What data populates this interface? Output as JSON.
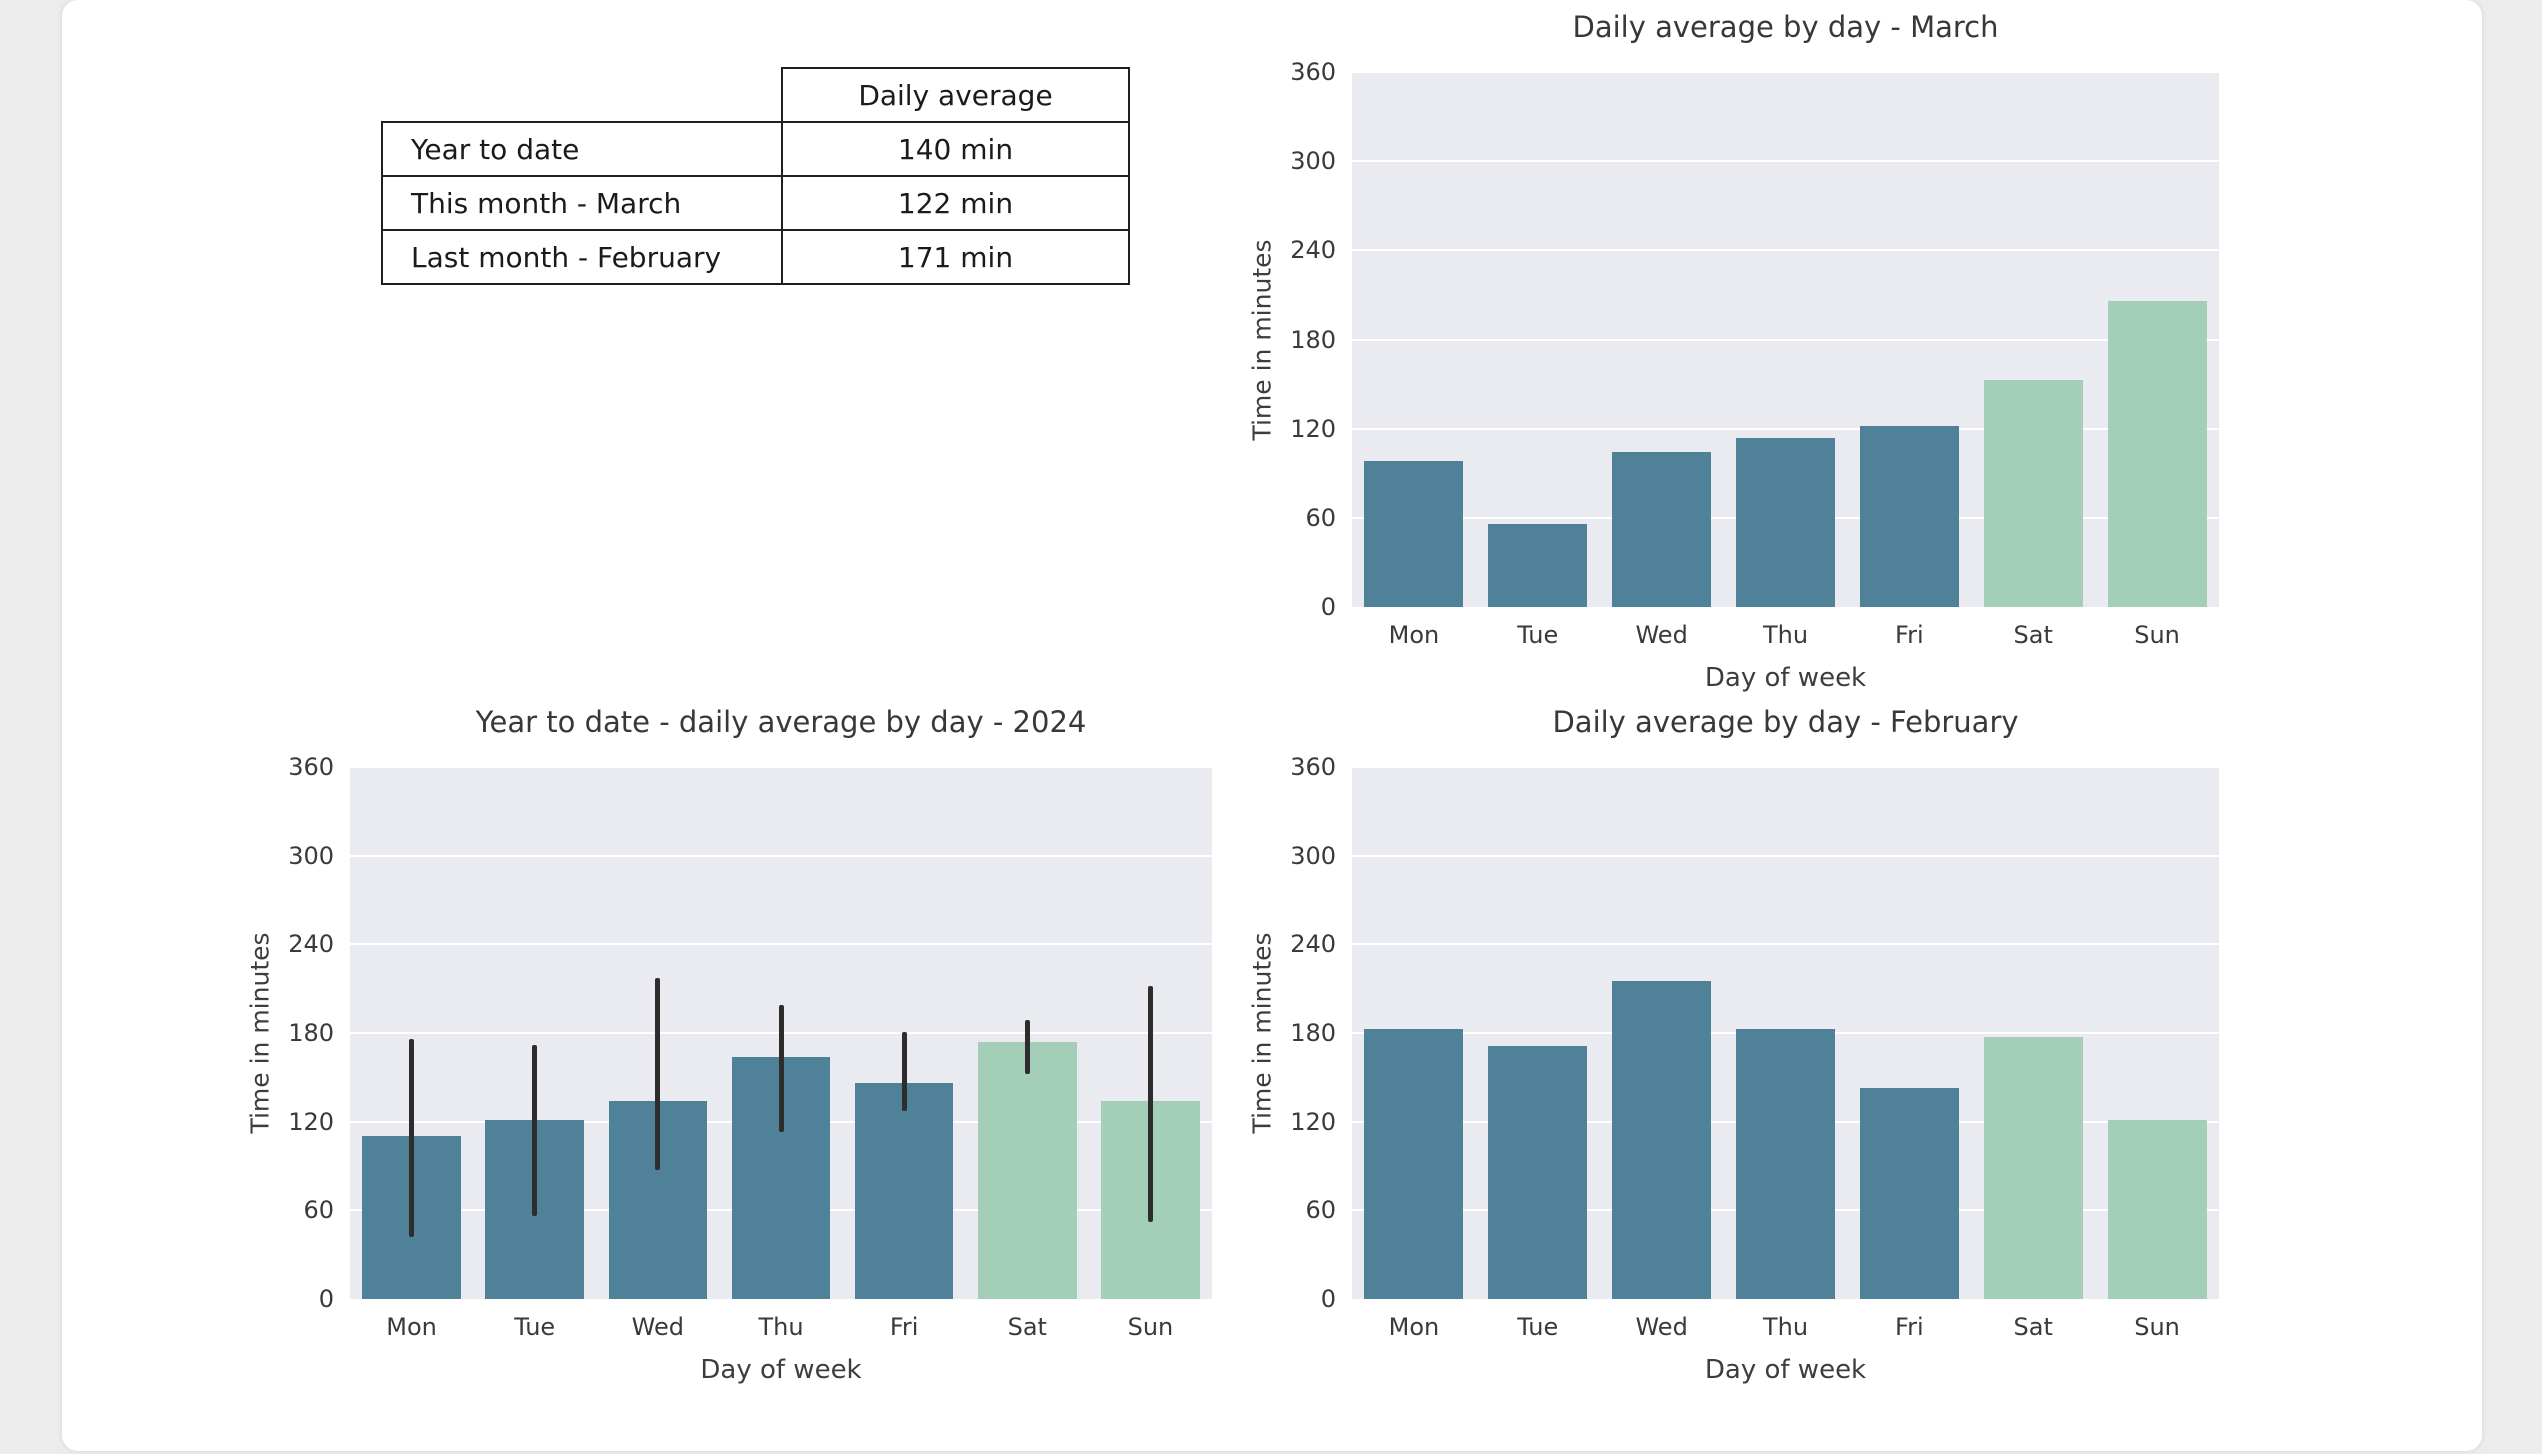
{
  "window": {
    "background_color": "#ececec",
    "canvas_color": "#ffffff"
  },
  "summary_table": {
    "header": "Daily average",
    "rows": [
      {
        "label": "Year to date",
        "value": "140 min"
      },
      {
        "label": "This month - March",
        "value": "122 min"
      },
      {
        "label": "Last month - February",
        "value": "171 min"
      }
    ]
  },
  "colors": {
    "weekday": "#4f8299",
    "weekend": "#a3cfb8",
    "plot_bg": "#e9ebf1",
    "grid_line": "#ffffff",
    "error_bar": "#2d2d2d",
    "text": "#3a3a3a",
    "table_border": "#1f1f1f"
  },
  "chart_data": [
    {
      "type": "bar",
      "title": "Daily average by day - March",
      "xlabel": "Day of week",
      "ylabel": "Time in minutes",
      "categories": [
        "Mon",
        "Tue",
        "Wed",
        "Thu",
        "Fri",
        "Sat",
        "Sun"
      ],
      "values": [
        98,
        56,
        104,
        114,
        122,
        153,
        206
      ],
      "bar_colors": [
        "weekday",
        "weekday",
        "weekday",
        "weekday",
        "weekday",
        "weekend",
        "weekend"
      ],
      "ylim": [
        0,
        360
      ],
      "yticks": [
        0,
        60,
        120,
        180,
        240,
        300,
        360
      ],
      "grid": true,
      "legend": "none"
    },
    {
      "type": "bar",
      "title": "Year to date - daily average by day - 2024",
      "xlabel": "Day of week",
      "ylabel": "Time in minutes",
      "categories": [
        "Mon",
        "Tue",
        "Wed",
        "Thu",
        "Fri",
        "Sat",
        "Sun"
      ],
      "values": [
        110,
        121,
        134,
        164,
        146,
        174,
        134
      ],
      "error_low": [
        42,
        56,
        87,
        113,
        127,
        152,
        52
      ],
      "error_high": [
        176,
        172,
        217,
        199,
        181,
        189,
        212
      ],
      "bar_colors": [
        "weekday",
        "weekday",
        "weekday",
        "weekday",
        "weekday",
        "weekend",
        "weekend"
      ],
      "ylim": [
        0,
        360
      ],
      "yticks": [
        0,
        60,
        120,
        180,
        240,
        300,
        360
      ],
      "grid": true,
      "legend": "none"
    },
    {
      "type": "bar",
      "title": "Daily average by day - February",
      "xlabel": "Day of week",
      "ylabel": "Time in minutes",
      "categories": [
        "Mon",
        "Tue",
        "Wed",
        "Thu",
        "Fri",
        "Sat",
        "Sun"
      ],
      "values": [
        183,
        171,
        215,
        183,
        143,
        177,
        121
      ],
      "bar_colors": [
        "weekday",
        "weekday",
        "weekday",
        "weekday",
        "weekday",
        "weekend",
        "weekend"
      ],
      "ylim": [
        0,
        360
      ],
      "yticks": [
        0,
        60,
        120,
        180,
        240,
        300,
        360
      ],
      "grid": true,
      "legend": "none"
    }
  ]
}
